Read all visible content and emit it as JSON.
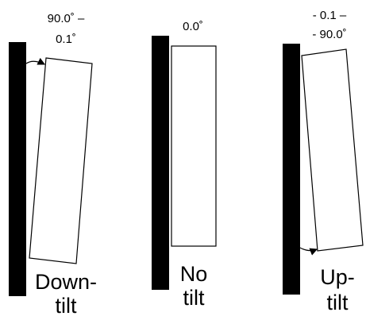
{
  "panels": [
    {
      "angle_line1": "90.0˚ –",
      "angle_line2": "0.1˚",
      "caption_line1": "Down-",
      "caption_line2": "tilt"
    },
    {
      "angle_line1": "0.0˚",
      "caption_line1": "No",
      "caption_line2": "tilt"
    },
    {
      "angle_line1": "- 0.1 –",
      "angle_line2": "- 90.0˚",
      "caption_line1": "Up-",
      "caption_line2": "tilt"
    }
  ],
  "colors": {
    "wall": "#000000",
    "panel_fill": "#ffffff",
    "panel_stroke": "#000000"
  }
}
